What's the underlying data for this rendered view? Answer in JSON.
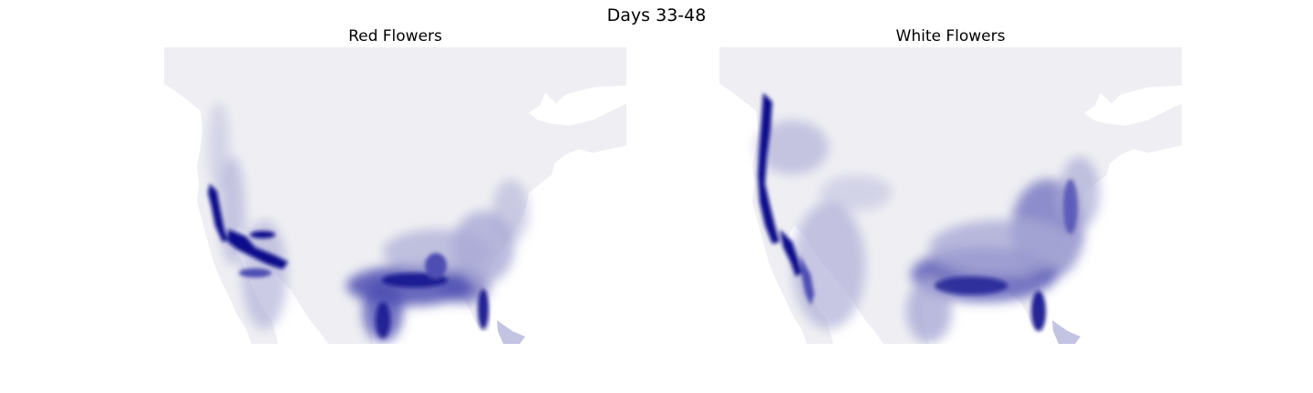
{
  "figure": {
    "title": "Days 33-48"
  },
  "panels": [
    {
      "title": "Red Flowers"
    },
    {
      "title": "White Flowers"
    }
  ],
  "colors": {
    "land_low": "#efeff3",
    "density_high": "#0d0d8c",
    "density_mid": "#4d4db3",
    "density_light": "#a9a9d6",
    "background": "#ffffff"
  }
}
